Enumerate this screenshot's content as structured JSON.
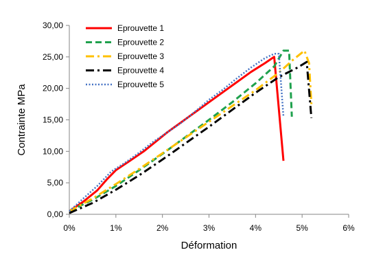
{
  "chart_data": {
    "type": "line",
    "title": "",
    "xlabel": "Déformation",
    "ylabel": "Contrainte MPa",
    "x_unit": "percent",
    "xlim": [
      0,
      6
    ],
    "ylim": [
      0,
      30
    ],
    "x_ticks": [
      0,
      1,
      2,
      3,
      4,
      5,
      6
    ],
    "x_tick_labels": [
      "0%",
      "1%",
      "2%",
      "3%",
      "4%",
      "5%",
      "6%"
    ],
    "y_ticks": [
      0,
      5,
      10,
      15,
      20,
      25,
      30
    ],
    "y_tick_labels": [
      "0,00",
      "5,00",
      "10,00",
      "15,00",
      "20,00",
      "25,00",
      "30,00"
    ],
    "grid": false,
    "legend_position": "top-left",
    "series": [
      {
        "name": "Eprouvette 1",
        "color": "#ff0000",
        "dash": "solid",
        "x": [
          0,
          0.3,
          0.6,
          0.8,
          1.0,
          1.3,
          1.6,
          1.9,
          2.1,
          2.4,
          2.7,
          3.0,
          3.3,
          3.6,
          3.9,
          4.2,
          4.4,
          4.6
        ],
        "y": [
          0.5,
          2.0,
          3.8,
          5.5,
          7.0,
          8.5,
          10.0,
          11.8,
          13.0,
          14.6,
          16.2,
          17.8,
          19.4,
          21.0,
          22.6,
          24.0,
          25.0,
          8.5
        ]
      },
      {
        "name": "Eprouvette 2",
        "color": "#1fa14d",
        "dash": "dashed",
        "x": [
          0,
          0.5,
          1.0,
          1.5,
          2.0,
          2.5,
          3.0,
          3.5,
          4.0,
          4.4,
          4.6,
          4.72,
          4.78
        ],
        "y": [
          0.5,
          2.3,
          4.5,
          7.0,
          9.6,
          12.3,
          15.0,
          17.8,
          20.8,
          23.5,
          26.0,
          26.0,
          15.5
        ]
      },
      {
        "name": "Eprouvette 3",
        "color": "#ffc000",
        "dash": "dashdot",
        "x": [
          0,
          0.5,
          1.0,
          1.5,
          2.0,
          2.5,
          3.0,
          3.5,
          4.0,
          4.5,
          4.8,
          5.05,
          5.15,
          5.2
        ],
        "y": [
          0.5,
          2.5,
          4.8,
          7.2,
          9.7,
          12.2,
          14.7,
          17.2,
          19.7,
          22.5,
          24.5,
          26.0,
          24.0,
          17.5
        ]
      },
      {
        "name": "Eprouvette 4",
        "color": "#000000",
        "dash": "dashdot",
        "x": [
          0,
          0.5,
          1.0,
          1.5,
          2.0,
          2.5,
          3.0,
          3.5,
          4.0,
          4.5,
          4.9,
          5.1,
          5.2
        ],
        "y": [
          0.2,
          1.8,
          3.9,
          6.2,
          8.7,
          11.3,
          13.9,
          16.6,
          19.3,
          21.8,
          23.3,
          24.2,
          15.3
        ]
      },
      {
        "name": "Eprouvette 5",
        "color": "#4472c4",
        "dash": "dotted",
        "x": [
          0,
          0.3,
          0.6,
          0.9,
          1.2,
          1.5,
          1.8,
          2.1,
          2.4,
          2.7,
          3.0,
          3.3,
          3.6,
          3.9,
          4.2,
          4.4,
          4.5,
          4.6
        ],
        "y": [
          0.5,
          2.5,
          4.5,
          6.8,
          8.2,
          9.8,
          11.5,
          13.0,
          14.5,
          16.3,
          18.2,
          19.8,
          21.6,
          23.3,
          24.8,
          25.5,
          25.5,
          15.5
        ]
      }
    ]
  }
}
